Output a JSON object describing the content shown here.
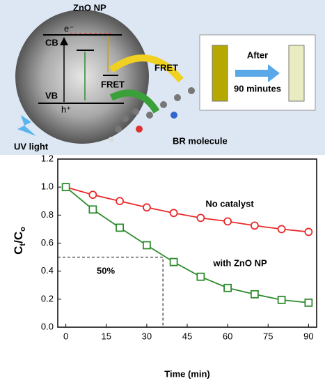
{
  "diagram": {
    "particle": "ZnO NP",
    "cb": "CB",
    "vb": "VB",
    "electron": "e⁻",
    "hole": "h⁺",
    "fret_1": "FRET",
    "fret_2": "FRET",
    "light": "UV light",
    "molecule": "BR molecule",
    "after": "After",
    "duration": "90 minutes"
  },
  "chart_data": {
    "type": "line",
    "x": [
      0,
      10,
      20,
      30,
      40,
      50,
      60,
      70,
      80,
      90
    ],
    "series": [
      {
        "name": "No catalyst",
        "color": "#e8292a",
        "marker": "circle",
        "values": [
          1.0,
          0.945,
          0.9,
          0.855,
          0.815,
          0.78,
          0.755,
          0.725,
          0.7,
          0.68
        ]
      },
      {
        "name": "with ZnO NP",
        "color": "#2e8b2e",
        "marker": "square",
        "values": [
          1.0,
          0.84,
          0.71,
          0.585,
          0.465,
          0.36,
          0.28,
          0.235,
          0.195,
          0.175
        ]
      }
    ],
    "xlabel": "Time (min)",
    "ylabel_parts": [
      "C",
      "t",
      "/C",
      "o"
    ],
    "xlim": [
      -3,
      93
    ],
    "ylim": [
      0,
      1.2
    ],
    "xticks": [
      0,
      15,
      30,
      45,
      60,
      75,
      90
    ],
    "yticks": [
      {
        "value": 0,
        "label": "0.0"
      },
      {
        "value": 0.2,
        "label": "0.2"
      },
      {
        "value": 0.4,
        "label": "0.4"
      },
      {
        "value": 0.6,
        "label": "0.6"
      },
      {
        "value": 0.8,
        "label": "0.8"
      },
      {
        "value": 1.0,
        "label": "1.0"
      },
      {
        "value": 1.2,
        "label": "1.2"
      }
    ],
    "half_life": {
      "x": 36,
      "y": 0.5,
      "label": "50%"
    }
  }
}
